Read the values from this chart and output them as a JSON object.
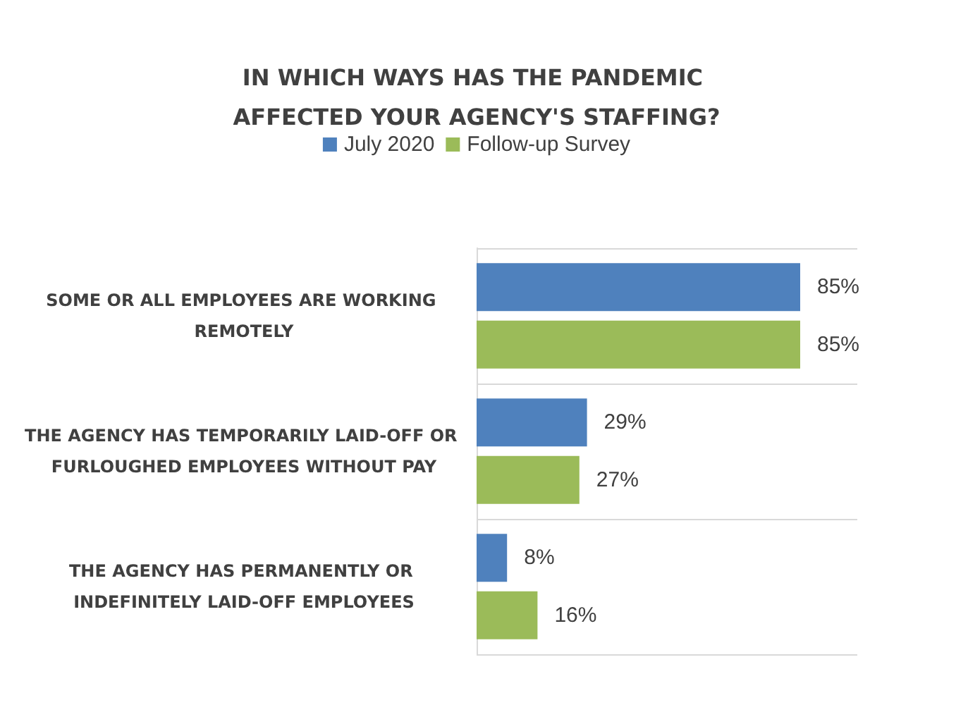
{
  "chart_data": {
    "type": "bar",
    "orientation": "horizontal",
    "title": "IN WHICH WAYS HAS THE PANDEMIC AFFECTED YOUR AGENCY'S STAFFING?",
    "categories": [
      "SOME OR ALL EMPLOYEES ARE WORKING REMOTELY",
      "THE AGENCY HAS TEMPORARILY LAID-OFF OR FURLOUGHED EMPLOYEES WITHOUT PAY",
      "THE AGENCY HAS PERMANENTLY OR INDEFINITELY LAID-OFF EMPLOYEES"
    ],
    "series": [
      {
        "name": "July 2020",
        "color": "#4f81bd",
        "values": [
          85,
          29,
          8
        ],
        "value_labels": [
          "85%",
          "29%",
          "8%"
        ]
      },
      {
        "name": "Follow-up Survey",
        "color": "#9bbb59",
        "values": [
          85,
          27,
          16
        ],
        "value_labels": [
          "85%",
          "27%",
          "16%"
        ]
      }
    ],
    "grid": "y",
    "legend": "top"
  }
}
